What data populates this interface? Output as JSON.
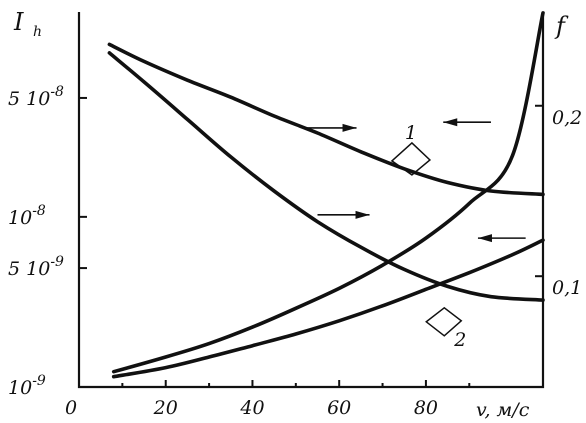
{
  "chart_data": {
    "type": "line",
    "title": "",
    "xlabel": "v, м/с",
    "ylabel_left": "I",
    "ylabel_left_subscript": "h",
    "ylabel_right": "f",
    "xlim": [
      0,
      107
    ],
    "ylim_left_log": [
      1e-09,
      1.6e-07
    ],
    "ylim_right": [
      0.035,
      0.255
    ],
    "grid": false,
    "x_ticks": [
      {
        "value": 0,
        "label": "0"
      },
      {
        "value": 20,
        "label": "20"
      },
      {
        "value": 40,
        "label": "40"
      },
      {
        "value": 60,
        "label": "60"
      },
      {
        "value": 80,
        "label": "80"
      }
    ],
    "y_left_ticks": [
      {
        "value": 1e-09,
        "mant": "10",
        "exp": "-9"
      },
      {
        "value": 5e-09,
        "mant": "5 10",
        "exp": "-9"
      },
      {
        "value": 1e-08,
        "mant": "10",
        "exp": "-8"
      },
      {
        "value": 5e-08,
        "mant": "5 10",
        "exp": "-8"
      }
    ],
    "y_right_ticks": [
      {
        "value": 0.1,
        "label": "0,1"
      },
      {
        "value": 0.2,
        "label": "0,2"
      }
    ],
    "series": [
      {
        "axis": "left",
        "x": [
          8,
          20,
          30,
          40,
          50,
          60,
          70,
          80,
          90,
          100,
          107
        ],
        "y": [
          1.23e-09,
          1.5e-09,
          1.8e-09,
          2.25e-09,
          2.9e-09,
          3.8e-09,
          5.2e-09,
          7.5e-09,
          1.2e-08,
          2.3e-08,
          1.58e-07
        ]
      },
      {
        "axis": "left",
        "x": [
          8,
          20,
          30,
          40,
          50,
          60,
          70,
          80,
          90,
          100,
          107
        ],
        "y": [
          1.15e-09,
          1.3e-09,
          1.5e-09,
          1.75e-09,
          2.05e-09,
          2.45e-09,
          3e-09,
          3.75e-09,
          4.7e-09,
          6e-09,
          7.3e-09
        ]
      },
      {
        "axis": "right",
        "x": [
          7,
          15,
          25,
          35,
          45,
          55,
          65,
          75,
          85,
          95,
          107
        ],
        "y": [
          0.236,
          0.226,
          0.215,
          0.205,
          0.194,
          0.184,
          0.173,
          0.163,
          0.155,
          0.15,
          0.148
        ]
      },
      {
        "axis": "right",
        "x": [
          7,
          15,
          25,
          35,
          45,
          55,
          65,
          75,
          85,
          95,
          107
        ],
        "y": [
          0.231,
          0.214,
          0.192,
          0.17,
          0.15,
          0.132,
          0.117,
          0.104,
          0.094,
          0.088,
          0.086
        ]
      }
    ],
    "curve_labels": [
      {
        "text": "1",
        "x": 77,
        "axis": "left",
        "y": 1.5e-08
      },
      {
        "text": "2",
        "x": 87,
        "axis": "left",
        "y": 2e-09
      }
    ],
    "direction_arrows": [
      {
        "from_x": 52,
        "to_x": 64,
        "axis": "right",
        "y": 0.187,
        "dir": "right"
      },
      {
        "from_x": 55,
        "to_x": 67,
        "axis": "right",
        "y": 0.136,
        "dir": "right"
      },
      {
        "from_x": 95,
        "to_x": 84,
        "axis": "left",
        "y": 3.6e-08,
        "dir": "left"
      },
      {
        "from_x": 103,
        "to_x": 92,
        "axis": "left",
        "y": 7.5e-09,
        "dir": "left"
      }
    ]
  }
}
